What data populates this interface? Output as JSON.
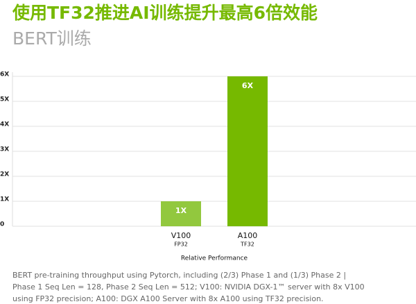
{
  "chart_data": {
    "type": "bar",
    "title": "使用TF32推进AI训练提升最高6倍效能",
    "subtitle": "BERT训练",
    "categories": [
      "V100",
      "A100"
    ],
    "precisions": [
      "FP32",
      "TF32"
    ],
    "values": [
      1,
      6
    ],
    "value_labels": [
      "1X",
      "6X"
    ],
    "colors": [
      "#92c83e",
      "#76b900"
    ],
    "xlabel": "Relative Performance",
    "ylim": [
      0,
      6
    ],
    "yticks": [
      0,
      {
        "value": 1,
        "label": "1X"
      },
      {
        "value": 2,
        "label": "2X"
      },
      {
        "value": 3,
        "label": "3X"
      },
      {
        "value": 4,
        "label": "4X"
      },
      {
        "value": 5,
        "label": "5X"
      },
      {
        "value": 6,
        "label": "6X"
      }
    ],
    "grid": true,
    "footnote": [
      "BERT pre-training throughput using Pytorch, including (2/3) Phase 1 and (1/3) Phase 2 |",
      "Phase 1 Seq Len = 128, Phase 2 Seq Len = 512; V100: NVIDIA DGX-1™ server with 8x V100",
      "using FP32 precision; A100: DGX A100 Server with 8x A100 using TF32 precision."
    ]
  }
}
